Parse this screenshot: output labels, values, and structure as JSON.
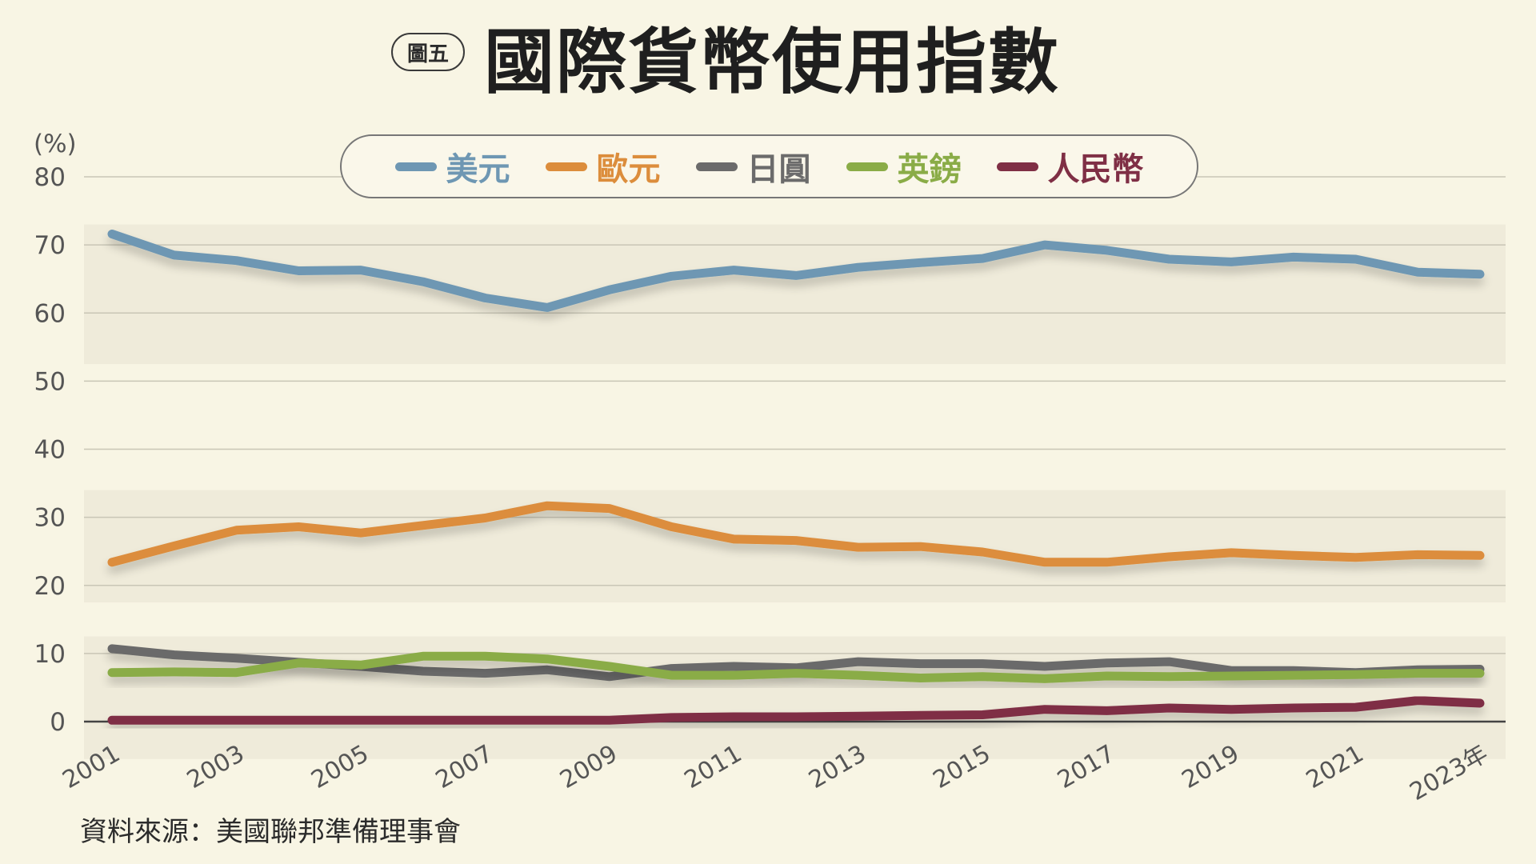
{
  "figure_label": "圖五",
  "title": "國際貨幣使用指數",
  "source": "資料來源：美國聯邦準備理事會",
  "chart_data": {
    "type": "line",
    "title": "國際貨幣使用指數",
    "ylabel": "(%)",
    "xlabel": "",
    "ylim": [
      0,
      80
    ],
    "yticks": [
      0,
      10,
      20,
      30,
      40,
      50,
      60,
      70,
      80
    ],
    "grid": true,
    "legend_position": "top-center",
    "x": [
      2001,
      2002,
      2003,
      2004,
      2005,
      2006,
      2007,
      2008,
      2009,
      2010,
      2011,
      2012,
      2013,
      2014,
      2015,
      2016,
      2017,
      2018,
      2019,
      2020,
      2021,
      2022,
      2023
    ],
    "x_tick_labels": [
      {
        "year": 2001,
        "label": "2001"
      },
      {
        "year": 2003,
        "label": "2003"
      },
      {
        "year": 2005,
        "label": "2005"
      },
      {
        "year": 2007,
        "label": "2007"
      },
      {
        "year": 2009,
        "label": "2009"
      },
      {
        "year": 2011,
        "label": "2011"
      },
      {
        "year": 2013,
        "label": "2013"
      },
      {
        "year": 2015,
        "label": "2015"
      },
      {
        "year": 2017,
        "label": "2017"
      },
      {
        "year": 2019,
        "label": "2019"
      },
      {
        "year": 2021,
        "label": "2021"
      },
      {
        "year": 2023,
        "label": "2023年"
      }
    ],
    "series": [
      {
        "name": "美元",
        "color": "#6e97b3",
        "values": [
          71.6,
          68.5,
          67.7,
          66.2,
          66.3,
          64.6,
          62.2,
          60.8,
          63.4,
          65.4,
          66.3,
          65.5,
          66.7,
          67.4,
          68.0,
          70.0,
          69.2,
          67.9,
          67.5,
          68.2,
          67.9,
          66.0,
          65.7
        ]
      },
      {
        "name": "歐元",
        "color": "#dc8d3c",
        "values": [
          23.4,
          25.8,
          28.1,
          28.6,
          27.7,
          28.8,
          29.9,
          31.7,
          31.3,
          28.6,
          26.8,
          26.6,
          25.6,
          25.7,
          24.9,
          23.4,
          23.4,
          24.2,
          24.8,
          24.4,
          24.1,
          24.5,
          24.4
        ]
      },
      {
        "name": "日圓",
        "color": "#6b6b6b",
        "values": [
          10.7,
          9.8,
          9.3,
          8.7,
          8.1,
          7.4,
          7.1,
          7.6,
          6.6,
          7.8,
          8.1,
          7.9,
          8.8,
          8.5,
          8.5,
          8.1,
          8.6,
          8.8,
          7.5,
          7.5,
          7.2,
          7.6,
          7.7
        ]
      },
      {
        "name": "英鎊",
        "color": "#8aac47",
        "values": [
          7.2,
          7.3,
          7.2,
          8.6,
          8.3,
          9.6,
          9.6,
          9.2,
          8.1,
          6.8,
          6.8,
          7.1,
          6.8,
          6.4,
          6.6,
          6.3,
          6.7,
          6.6,
          6.7,
          6.8,
          6.9,
          7.1,
          7.1
        ]
      },
      {
        "name": "人民幣",
        "color": "#7f2f45",
        "values": [
          0.2,
          0.2,
          0.2,
          0.2,
          0.2,
          0.2,
          0.2,
          0.2,
          0.2,
          0.6,
          0.7,
          0.7,
          0.8,
          0.9,
          1.0,
          1.8,
          1.6,
          2.0,
          1.8,
          2.0,
          2.1,
          3.1,
          2.7
        ]
      }
    ]
  }
}
